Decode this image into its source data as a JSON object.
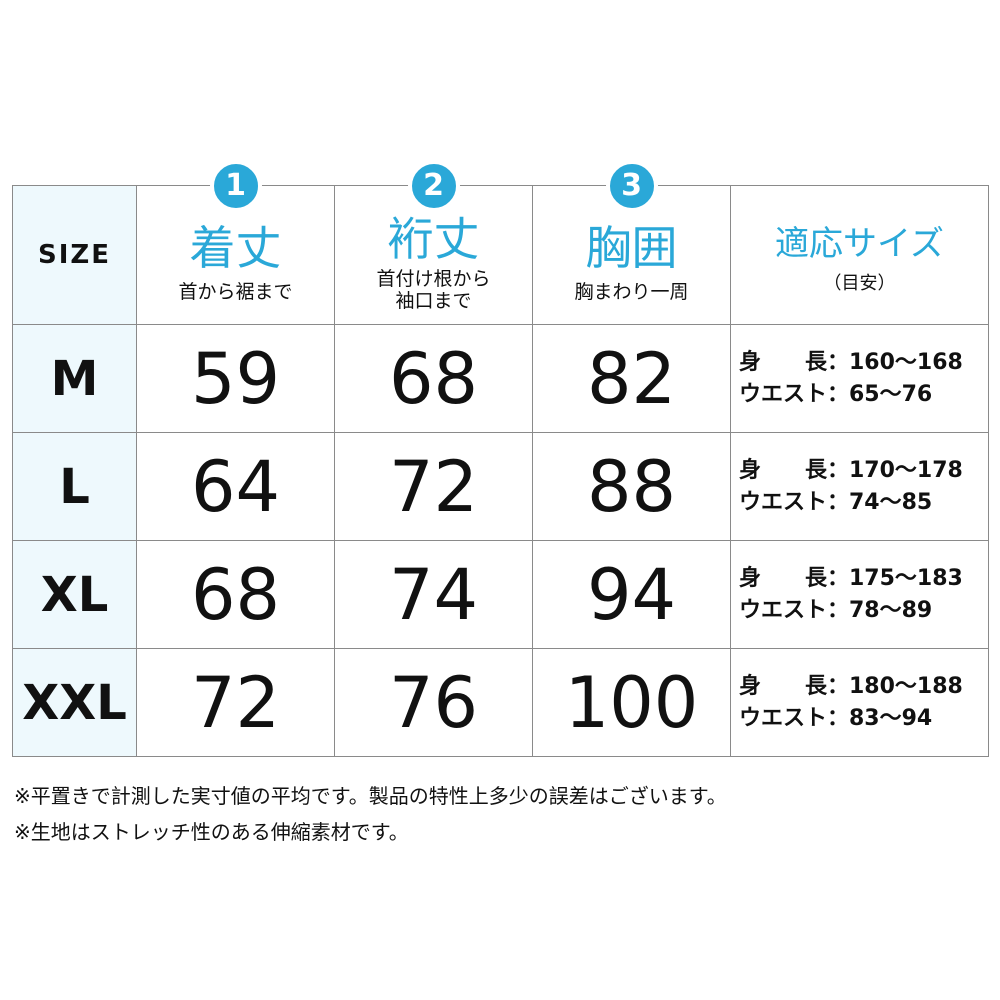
{
  "accent_color": "#2aa8d8",
  "size_column_bg": "#eef9fd",
  "header": {
    "size_label": "SIZE",
    "columns": [
      {
        "badge": "1",
        "title": "着丈",
        "sub": "首から裾まで"
      },
      {
        "badge": "2",
        "title": "裄丈",
        "sub": "首付け根から",
        "sub2": "袖口まで"
      },
      {
        "badge": "3",
        "title": "胸囲",
        "sub": "胸まわり一周"
      }
    ],
    "fit_title": "適応サイズ",
    "fit_sub": "（目安）"
  },
  "rows": [
    {
      "size": "M",
      "v1": "59",
      "v2": "68",
      "v3": "82",
      "height": "身　　長：160〜168",
      "waist": "ウエスト：65〜76"
    },
    {
      "size": "L",
      "v1": "64",
      "v2": "72",
      "v3": "88",
      "height": "身　　長：170〜178",
      "waist": "ウエスト：74〜85"
    },
    {
      "size": "XL",
      "v1": "68",
      "v2": "74",
      "v3": "94",
      "height": "身　　長：175〜183",
      "waist": "ウエスト：78〜89"
    },
    {
      "size": "XXL",
      "v1": "72",
      "v2": "76",
      "v3": "100",
      "height": "身　　長：180〜188",
      "waist": "ウエスト：83〜94"
    }
  ],
  "notes": [
    "※平置きで計測した実寸値の平均です。製品の特性上多少の誤差はございます。",
    "※生地はストレッチ性のある伸縮素材です。"
  ]
}
